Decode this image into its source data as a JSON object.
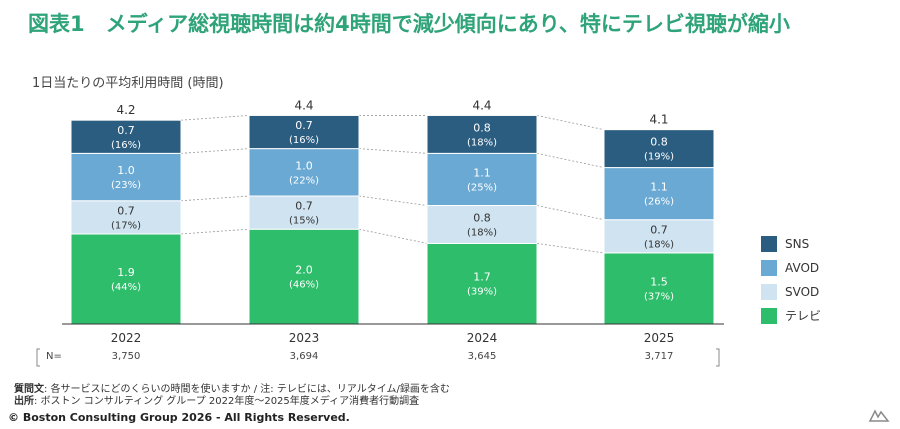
{
  "title": "図表1　メディア総視聴時間は約4時間で減少傾向にあり、特にテレビ視聴が縮小",
  "subtitle": "1日当たりの平均利用時間 (時間)",
  "chart_data": {
    "type": "bar",
    "stacked": true,
    "categories": [
      "2022",
      "2023",
      "2024",
      "2025"
    ],
    "totals": [
      "4.2",
      "4.4",
      "4.4",
      "4.1"
    ],
    "series": [
      {
        "name": "テレビ",
        "color": "#2ebd6b",
        "values": [
          1.9,
          2.0,
          1.7,
          1.5
        ],
        "labels": [
          "1.9",
          "2.0",
          "1.7",
          "1.5"
        ],
        "shares": [
          "(44%)",
          "(46%)",
          "(39%)",
          "(37%)"
        ]
      },
      {
        "name": "SVOD",
        "color": "#cfe3f1",
        "values": [
          0.7,
          0.7,
          0.8,
          0.7
        ],
        "labels": [
          "0.7",
          "0.7",
          "0.8",
          "0.7"
        ],
        "shares": [
          "(17%)",
          "(15%)",
          "(18%)",
          "(18%)"
        ]
      },
      {
        "name": "AVOD",
        "color": "#6aa9d4",
        "values": [
          1.0,
          1.0,
          1.1,
          1.1
        ],
        "labels": [
          "1.0",
          "1.0",
          "1.1",
          "1.1"
        ],
        "shares": [
          "(23%)",
          "(22%)",
          "(25%)",
          "(26%)"
        ]
      },
      {
        "name": "SNS",
        "color": "#2a5d80",
        "values": [
          0.7,
          0.7,
          0.8,
          0.8
        ],
        "labels": [
          "0.7",
          "0.7",
          "0.8",
          "0.8"
        ],
        "shares": [
          "(16%)",
          "(16%)",
          "(18%)",
          "(19%)"
        ]
      }
    ],
    "legend_order": [
      "SNS",
      "AVOD",
      "SVOD",
      "テレビ"
    ],
    "legend_position": "right",
    "sample_label": "N=",
    "sample_sizes": [
      "3,750",
      "3,694",
      "3,645",
      "3,717"
    ]
  },
  "notes": {
    "question_label": "質問文",
    "question_text": ": 各サービスにどのくらいの時間を使いますか / 注: テレビには、リアルタイム/録画を含む",
    "source_label": "出所",
    "source_text": ": ボストン コンサルティング グループ 2022年度～2025年度メディア消費者行動調査"
  },
  "copyright": "© Boston Consulting Group 2026 - All Rights Reserved."
}
